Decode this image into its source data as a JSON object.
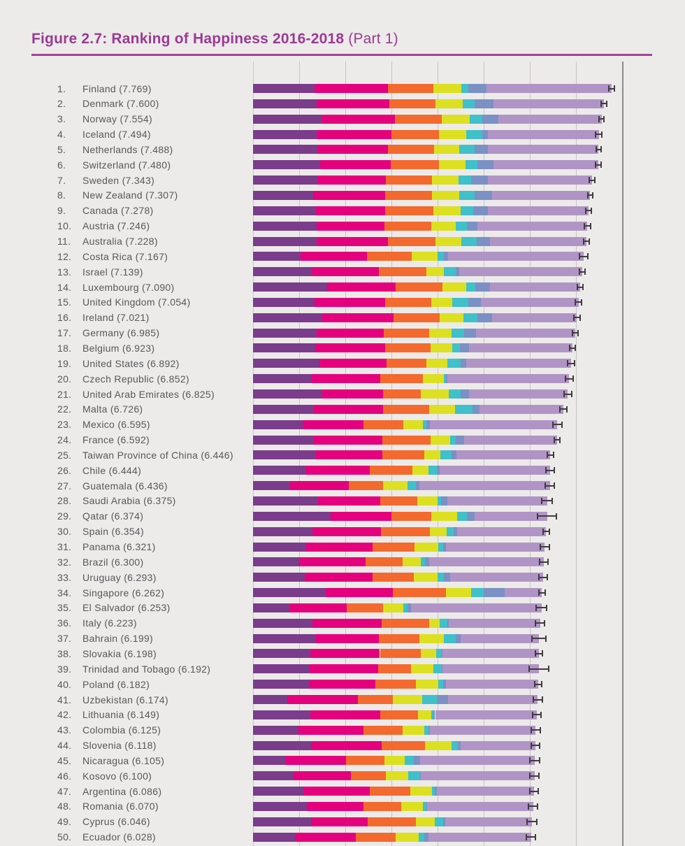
{
  "page": {
    "background": "#ECEBE9"
  },
  "header": {
    "title_main": "Figure 2.7: Ranking of Happiness 2016-2018",
    "title_suffix": " (Part 1)",
    "title_color": "#9B3A95",
    "rule_color": "#A2439A"
  },
  "chart_data": {
    "type": "bar",
    "orientation": "horizontal",
    "stacked": true,
    "title": "Figure 2.7: Ranking of Happiness 2016-2018 (Part 1)",
    "xlabel": "",
    "ylabel": "",
    "x_axis": {
      "min": 0,
      "max": 8,
      "gridline_step": 1,
      "tick_labels_visible": false
    },
    "grid": true,
    "legend_visible": false,
    "error_bars": true,
    "label_format": "{rank}.  {country} ({score})",
    "segment_color_names": [
      "dark-purple",
      "magenta",
      "orange",
      "lime-yellow",
      "teal",
      "periwinkle-blue",
      "light-lavender"
    ],
    "segment_colors": [
      "#7B3C8B",
      "#E5007D",
      "#F4692E",
      "#DDE020",
      "#3FC0CA",
      "#7B90C5",
      "#B194C6"
    ],
    "residual_note": "seventh light-lavender segment width = score minus sum of the six values; whisker = score +/- ci",
    "whisker_color": "#3D3D3D",
    "grid_color": "#C7C4C0",
    "axis_border_color": "#8B8B8B",
    "label_color": "#57575A",
    "rows": [
      {
        "rank": 1,
        "country": "Finland",
        "score": 7.769,
        "values": [
          1.34,
          1.587,
          0.986,
          0.596,
          0.153,
          0.393
        ],
        "ci": 0.06
      },
      {
        "rank": 2,
        "country": "Denmark",
        "score": 7.6,
        "values": [
          1.383,
          1.573,
          0.996,
          0.592,
          0.252,
          0.41
        ],
        "ci": 0.06
      },
      {
        "rank": 3,
        "country": "Norway",
        "score": 7.554,
        "values": [
          1.488,
          1.582,
          1.028,
          0.603,
          0.271,
          0.341
        ],
        "ci": 0.055
      },
      {
        "rank": 4,
        "country": "Iceland",
        "score": 7.494,
        "values": [
          1.38,
          1.624,
          1.026,
          0.591,
          0.354,
          0.118
        ],
        "ci": 0.07
      },
      {
        "rank": 5,
        "country": "Netherlands",
        "score": 7.488,
        "values": [
          1.396,
          1.522,
          0.999,
          0.557,
          0.322,
          0.298
        ],
        "ci": 0.055
      },
      {
        "rank": 6,
        "country": "Switzerland",
        "score": 7.48,
        "values": [
          1.452,
          1.526,
          1.052,
          0.572,
          0.263,
          0.343
        ],
        "ci": 0.06
      },
      {
        "rank": 7,
        "country": "Sweden",
        "score": 7.343,
        "values": [
          1.387,
          1.487,
          1.009,
          0.574,
          0.267,
          0.373
        ],
        "ci": 0.06
      },
      {
        "rank": 8,
        "country": "New Zealand",
        "score": 7.307,
        "values": [
          1.303,
          1.557,
          1.026,
          0.585,
          0.33,
          0.38
        ],
        "ci": 0.055
      },
      {
        "rank": 9,
        "country": "Canada",
        "score": 7.278,
        "values": [
          1.365,
          1.505,
          1.039,
          0.584,
          0.285,
          0.308
        ],
        "ci": 0.06
      },
      {
        "rank": 10,
        "country": "Austria",
        "score": 7.246,
        "values": [
          1.376,
          1.475,
          1.016,
          0.532,
          0.244,
          0.226
        ],
        "ci": 0.07
      },
      {
        "rank": 11,
        "country": "Australia",
        "score": 7.228,
        "values": [
          1.372,
          1.548,
          1.036,
          0.557,
          0.332,
          0.29
        ],
        "ci": 0.065
      },
      {
        "rank": 12,
        "country": "Costa Rica",
        "score": 7.167,
        "values": [
          1.034,
          1.441,
          0.963,
          0.558,
          0.144,
          0.093
        ],
        "ci": 0.09
      },
      {
        "rank": 13,
        "country": "Israel",
        "score": 7.139,
        "values": [
          1.276,
          1.455,
          1.029,
          0.371,
          0.261,
          0.082
        ],
        "ci": 0.06
      },
      {
        "rank": 14,
        "country": "Luxembourg",
        "score": 7.09,
        "values": [
          1.609,
          1.479,
          1.012,
          0.526,
          0.194,
          0.316
        ],
        "ci": 0.065
      },
      {
        "rank": 15,
        "country": "United Kingdom",
        "score": 7.054,
        "values": [
          1.333,
          1.538,
          0.996,
          0.45,
          0.348,
          0.278
        ],
        "ci": 0.065
      },
      {
        "rank": 16,
        "country": "Ireland",
        "score": 7.021,
        "values": [
          1.499,
          1.553,
          0.999,
          0.516,
          0.298,
          0.31
        ],
        "ci": 0.065
      },
      {
        "rank": 17,
        "country": "Germany",
        "score": 6.985,
        "values": [
          1.373,
          1.454,
          0.987,
          0.495,
          0.261,
          0.265
        ],
        "ci": 0.065
      },
      {
        "rank": 18,
        "country": "Belgium",
        "score": 6.923,
        "values": [
          1.356,
          1.504,
          0.986,
          0.473,
          0.16,
          0.21
        ],
        "ci": 0.065
      },
      {
        "rank": 19,
        "country": "United States",
        "score": 6.892,
        "values": [
          1.433,
          1.457,
          0.874,
          0.454,
          0.28,
          0.128
        ],
        "ci": 0.075
      },
      {
        "rank": 20,
        "country": "Czech Republic",
        "score": 6.852,
        "values": [
          1.269,
          1.487,
          0.92,
          0.457,
          0.046,
          0.036
        ],
        "ci": 0.08
      },
      {
        "rank": 21,
        "country": "United Arab Emirates",
        "score": 6.825,
        "values": [
          1.503,
          1.31,
          0.825,
          0.598,
          0.262,
          0.182
        ],
        "ci": 0.09
      },
      {
        "rank": 22,
        "country": "Malta",
        "score": 6.726,
        "values": [
          1.3,
          1.52,
          0.999,
          0.564,
          0.375,
          0.151
        ],
        "ci": 0.08
      },
      {
        "rank": 23,
        "country": "Mexico",
        "score": 6.595,
        "values": [
          1.07,
          1.323,
          0.861,
          0.433,
          0.074,
          0.073
        ],
        "ci": 0.095
      },
      {
        "rank": 24,
        "country": "France",
        "score": 6.592,
        "values": [
          1.324,
          1.472,
          1.045,
          0.436,
          0.111,
          0.183
        ],
        "ci": 0.06
      },
      {
        "rank": 25,
        "country": "Taiwan Province of China",
        "score": 6.446,
        "values": [
          1.368,
          1.43,
          0.914,
          0.351,
          0.242,
          0.097
        ],
        "ci": 0.07
      },
      {
        "rank": 26,
        "country": "Chile",
        "score": 6.444,
        "values": [
          1.159,
          1.369,
          0.92,
          0.357,
          0.187,
          0.056
        ],
        "ci": 0.09
      },
      {
        "rank": 27,
        "country": "Guatemala",
        "score": 6.436,
        "values": [
          0.8,
          1.269,
          0.746,
          0.535,
          0.175,
          0.078
        ],
        "ci": 0.1
      },
      {
        "rank": 28,
        "country": "Saudi Arabia",
        "score": 6.375,
        "values": [
          1.403,
          1.357,
          0.795,
          0.439,
          0.08,
          0.132
        ],
        "ci": 0.11
      },
      {
        "rank": 29,
        "country": "Qatar",
        "score": 6.374,
        "values": [
          1.684,
          1.313,
          0.871,
          0.555,
          0.22,
          0.167
        ],
        "ci": 0.2
      },
      {
        "rank": 30,
        "country": "Spain",
        "score": 6.354,
        "values": [
          1.286,
          1.484,
          1.062,
          0.362,
          0.153,
          0.079
        ],
        "ci": 0.07
      },
      {
        "rank": 31,
        "country": "Panama",
        "score": 6.321,
        "values": [
          1.149,
          1.442,
          0.91,
          0.516,
          0.109,
          0.054
        ],
        "ci": 0.1
      },
      {
        "rank": 32,
        "country": "Brazil",
        "score": 6.3,
        "values": [
          1.004,
          1.439,
          0.802,
          0.39,
          0.099,
          0.086
        ],
        "ci": 0.09
      },
      {
        "rank": 33,
        "country": "Uruguay",
        "score": 6.293,
        "values": [
          1.124,
          1.465,
          0.891,
          0.523,
          0.127,
          0.15
        ],
        "ci": 0.09
      },
      {
        "rank": 34,
        "country": "Singapore",
        "score": 6.262,
        "values": [
          1.572,
          1.463,
          1.141,
          0.556,
          0.271,
          0.453
        ],
        "ci": 0.07
      },
      {
        "rank": 35,
        "country": "El Salvador",
        "score": 6.253,
        "values": [
          0.794,
          1.242,
          0.789,
          0.43,
          0.093,
          0.074
        ],
        "ci": 0.11
      },
      {
        "rank": 36,
        "country": "Italy",
        "score": 6.223,
        "values": [
          1.294,
          1.488,
          1.039,
          0.231,
          0.158,
          0.03
        ],
        "ci": 0.1
      },
      {
        "rank": 37,
        "country": "Bahrain",
        "score": 6.199,
        "values": [
          1.362,
          1.368,
          0.871,
          0.536,
          0.255,
          0.11
        ],
        "ci": 0.15
      },
      {
        "rank": 38,
        "country": "Slovakia",
        "score": 6.198,
        "values": [
          1.246,
          1.504,
          0.881,
          0.334,
          0.121,
          0.014
        ],
        "ci": 0.08
      },
      {
        "rank": 39,
        "country": "Trinidad and Tobago",
        "score": 6.192,
        "values": [
          1.231,
          1.477,
          0.713,
          0.489,
          0.185,
          0.016
        ],
        "ci": 0.21
      },
      {
        "rank": 40,
        "country": "Poland",
        "score": 6.182,
        "values": [
          1.206,
          1.438,
          0.884,
          0.483,
          0.117,
          0.05
        ],
        "ci": 0.08
      },
      {
        "rank": 41,
        "country": "Uzbekistan",
        "score": 6.174,
        "values": [
          0.745,
          1.529,
          0.756,
          0.631,
          0.322,
          0.24
        ],
        "ci": 0.1
      },
      {
        "rank": 42,
        "country": "Lithuania",
        "score": 6.149,
        "values": [
          1.238,
          1.515,
          0.818,
          0.291,
          0.043,
          0.042
        ],
        "ci": 0.09
      },
      {
        "rank": 43,
        "country": "Colombia",
        "score": 6.125,
        "values": [
          0.985,
          1.41,
          0.841,
          0.47,
          0.099,
          0.034
        ],
        "ci": 0.1
      },
      {
        "rank": 44,
        "country": "Slovenia",
        "score": 6.118,
        "values": [
          1.258,
          1.523,
          0.953,
          0.564,
          0.144,
          0.057
        ],
        "ci": 0.09
      },
      {
        "rank": 45,
        "country": "Nicaragua",
        "score": 6.105,
        "values": [
          0.694,
          1.325,
          0.835,
          0.435,
          0.2,
          0.127
        ],
        "ci": 0.11
      },
      {
        "rank": 46,
        "country": "Kosovo",
        "score": 6.1,
        "values": [
          0.882,
          1.232,
          0.758,
          0.489,
          0.262,
          0.006
        ],
        "ci": 0.1
      },
      {
        "rank": 47,
        "country": "Argentina",
        "score": 6.086,
        "values": [
          1.092,
          1.432,
          0.881,
          0.471,
          0.066,
          0.05
        ],
        "ci": 0.09
      },
      {
        "rank": 48,
        "country": "Romania",
        "score": 6.07,
        "values": [
          1.162,
          1.232,
          0.825,
          0.462,
          0.083,
          0.005
        ],
        "ci": 0.1
      },
      {
        "rank": 49,
        "country": "Cyprus",
        "score": 6.046,
        "values": [
          1.263,
          1.223,
          1.042,
          0.406,
          0.19,
          0.041
        ],
        "ci": 0.11
      },
      {
        "rank": 50,
        "country": "Ecuador",
        "score": 6.028,
        "values": [
          0.912,
          1.312,
          0.868,
          0.498,
          0.126,
          0.087
        ],
        "ci": 0.1
      }
    ]
  }
}
